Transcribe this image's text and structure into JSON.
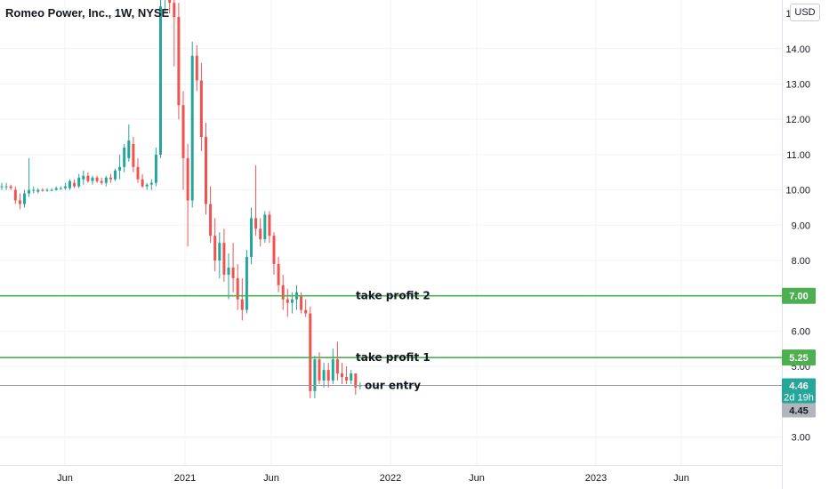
{
  "header": {
    "symbol_title": "Romeo Power, Inc., 1W, NYSE",
    "currency_button": "USD"
  },
  "colors": {
    "up": "#26a69a",
    "down": "#ef5350",
    "level_line": "#4caf50",
    "entry_line": "#9598a1",
    "last_price": "#26a69a",
    "prev_close": "#b2b5be"
  },
  "chart_data": {
    "type": "candlestick",
    "title": "Romeo Power, Inc., 1W, NYSE",
    "currency": "USD",
    "x_tick_labels": [
      "Jun",
      "2021",
      "Jun",
      "2022",
      "Jun",
      "2023",
      "Jun"
    ],
    "y_tick_labels": [
      "3.00",
      "5.00",
      "6.00",
      "8.00",
      "9.00",
      "10.00",
      "11.00",
      "12.00",
      "13.00",
      "14.00"
    ],
    "ylim": [
      2.2,
      15.1
    ],
    "grid": true,
    "candles": [
      [
        10.1,
        10.2,
        10.0,
        10.1
      ],
      [
        10.1,
        10.2,
        10.0,
        10.1
      ],
      [
        10.1,
        10.15,
        10.0,
        10.05
      ],
      [
        10.0,
        10.1,
        9.6,
        9.7
      ],
      [
        9.7,
        9.9,
        9.45,
        9.6
      ],
      [
        9.6,
        10.0,
        9.5,
        9.9
      ],
      [
        9.9,
        10.9,
        9.8,
        10.0
      ],
      [
        10.0,
        10.1,
        9.9,
        10.0
      ],
      [
        9.95,
        10.05,
        9.9,
        10.0
      ],
      [
        10.0,
        10.05,
        9.95,
        9.98
      ],
      [
        9.98,
        10.05,
        9.95,
        10.0
      ],
      [
        10.0,
        10.05,
        9.96,
        10.0
      ],
      [
        10.0,
        10.1,
        9.98,
        10.05
      ],
      [
        10.05,
        10.1,
        10.0,
        10.05
      ],
      [
        10.05,
        10.2,
        10.0,
        10.1
      ],
      [
        10.05,
        10.3,
        10.0,
        10.25
      ],
      [
        10.2,
        10.3,
        10.05,
        10.1
      ],
      [
        10.1,
        10.45,
        10.05,
        10.35
      ],
      [
        10.3,
        10.55,
        10.15,
        10.4
      ],
      [
        10.4,
        10.5,
        10.2,
        10.25
      ],
      [
        10.25,
        10.4,
        10.15,
        10.35
      ],
      [
        10.35,
        10.4,
        10.2,
        10.25
      ],
      [
        10.25,
        10.35,
        10.15,
        10.2
      ],
      [
        10.2,
        10.4,
        10.1,
        10.35
      ],
      [
        10.35,
        10.45,
        10.2,
        10.3
      ],
      [
        10.3,
        10.6,
        10.25,
        10.55
      ],
      [
        10.55,
        11.0,
        10.3,
        10.65
      ],
      [
        10.65,
        11.3,
        10.5,
        11.2
      ],
      [
        10.9,
        11.85,
        10.8,
        11.4
      ],
      [
        11.3,
        11.5,
        10.5,
        10.65
      ],
      [
        10.65,
        10.9,
        10.2,
        10.3
      ],
      [
        10.3,
        10.45,
        10.05,
        10.1
      ],
      [
        10.1,
        10.2,
        10.0,
        10.15
      ],
      [
        10.15,
        10.3,
        10.0,
        10.2
      ],
      [
        10.2,
        11.2,
        10.1,
        11.0
      ],
      [
        11.0,
        16.0,
        10.9,
        15.2
      ],
      [
        16.0,
        18.0,
        15.0,
        17.0
      ],
      [
        17.0,
        17.5,
        15.0,
        15.3
      ],
      [
        15.3,
        15.9,
        13.5,
        14.9
      ],
      [
        14.9,
        15.3,
        12.0,
        12.4
      ],
      [
        12.4,
        12.8,
        10.0,
        10.9
      ],
      [
        10.9,
        11.3,
        8.4,
        9.7
      ],
      [
        9.7,
        14.2,
        9.5,
        13.8
      ],
      [
        13.8,
        14.1,
        12.8,
        13.1
      ],
      [
        13.1,
        13.6,
        11.1,
        11.5
      ],
      [
        11.5,
        11.9,
        9.3,
        9.6
      ],
      [
        9.6,
        10.1,
        8.5,
        8.7
      ],
      [
        8.7,
        9.2,
        7.7,
        8.0
      ],
      [
        8.0,
        8.8,
        7.5,
        8.5
      ],
      [
        8.5,
        8.9,
        7.4,
        7.6
      ],
      [
        7.6,
        8.2,
        6.9,
        7.8
      ],
      [
        7.8,
        8.5,
        7.1,
        7.5
      ],
      [
        7.5,
        7.9,
        6.6,
        6.9
      ],
      [
        6.9,
        7.5,
        6.3,
        6.6
      ],
      [
        6.6,
        8.3,
        6.5,
        8.1
      ],
      [
        8.1,
        9.5,
        7.9,
        9.2
      ],
      [
        9.2,
        10.7,
        8.7,
        8.9
      ],
      [
        8.9,
        9.2,
        8.4,
        8.6
      ],
      [
        8.6,
        9.4,
        8.5,
        9.3
      ],
      [
        9.3,
        9.4,
        8.5,
        8.7
      ],
      [
        8.7,
        8.8,
        7.6,
        7.9
      ],
      [
        7.9,
        8.1,
        7.1,
        7.3
      ],
      [
        7.3,
        7.6,
        6.6,
        6.9
      ],
      [
        6.9,
        7.2,
        6.4,
        6.8
      ],
      [
        6.8,
        7.1,
        6.5,
        6.9
      ],
      [
        6.9,
        7.3,
        6.6,
        7.1
      ],
      [
        7.0,
        7.1,
        6.5,
        6.6
      ],
      [
        6.6,
        6.9,
        6.4,
        6.5
      ],
      [
        6.5,
        6.7,
        4.1,
        4.3
      ],
      [
        4.3,
        5.3,
        4.1,
        5.2
      ],
      [
        5.2,
        5.4,
        4.5,
        4.6
      ],
      [
        4.6,
        5.1,
        4.4,
        4.9
      ],
      [
        4.9,
        5.1,
        4.4,
        4.6
      ],
      [
        4.6,
        5.5,
        4.5,
        5.2
      ],
      [
        5.2,
        5.7,
        4.6,
        4.8
      ],
      [
        4.8,
        5.1,
        4.5,
        4.7
      ],
      [
        4.7,
        5.0,
        4.5,
        4.6
      ],
      [
        4.6,
        4.9,
        4.5,
        4.8
      ],
      [
        4.8,
        4.8,
        4.2,
        4.4
      ],
      [
        4.45,
        4.55,
        4.35,
        4.46
      ]
    ],
    "levels": [
      {
        "label": "take profit 2",
        "value": 7.0,
        "price_label": "7.00"
      },
      {
        "label": "take profit 1",
        "value": 5.25,
        "price_label": "5.25"
      },
      {
        "label": "our entry",
        "value": 4.46
      }
    ],
    "last_price": {
      "value": 4.46,
      "label": "4.46",
      "countdown": "2d 19h"
    },
    "prev_close": {
      "value": 4.45,
      "label": "4.45"
    }
  }
}
